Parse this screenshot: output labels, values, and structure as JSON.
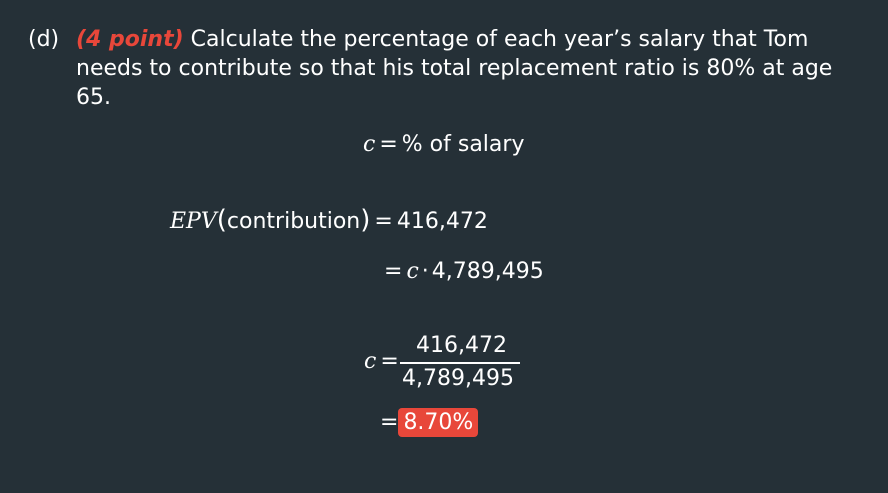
{
  "question": {
    "label": "(d)",
    "points": "(4 point)",
    "text": " Calculate the percentage of each year’s salary that Tom needs to contribute so that his total replacement ratio is 80% at age 65."
  },
  "definition": {
    "var": "c",
    "eq": "=",
    "text": "% of salary"
  },
  "epv": {
    "label": "EPV",
    "arg_open": "(",
    "arg": "contribution",
    "arg_close": ")",
    "eq": "=",
    "value": "416,472"
  },
  "epv_line2": {
    "eq": "=",
    "var": "c",
    "dot": "·",
    "value": "4,789,495"
  },
  "fraction": {
    "var": "c",
    "eq": "=",
    "numerator": "416,472",
    "denominator": "4,789,495"
  },
  "result": {
    "eq": "=",
    "value": "8.70%",
    "highlight_color": "#e8473a"
  },
  "colors": {
    "background": "#253037",
    "text": "#ffffff",
    "accent": "#e8473a"
  }
}
